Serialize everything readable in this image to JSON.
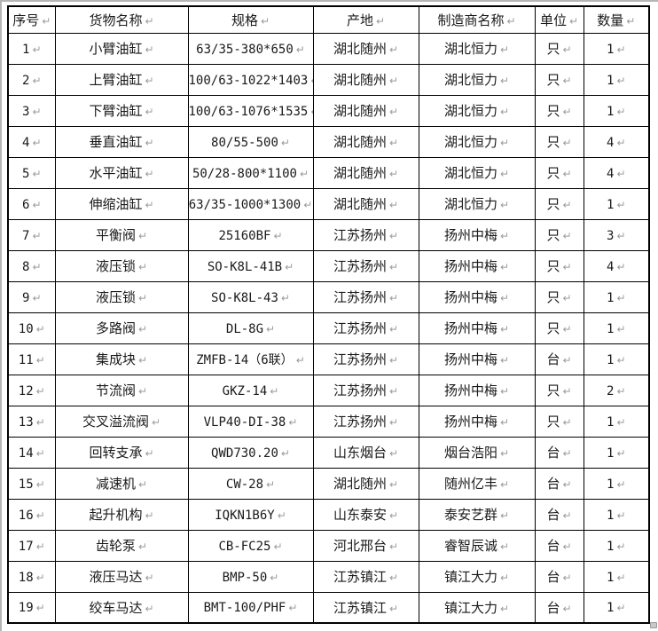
{
  "colors": {
    "grid": "#000000",
    "text": "#1a1a1a",
    "mark": "#9c9c9c",
    "page-edge": "#b5b5b5",
    "bg": "#ffffff"
  },
  "marks": {
    "cell_return": "↵"
  },
  "table": {
    "columns": [
      {
        "id": "no",
        "label": "序号"
      },
      {
        "id": "name",
        "label": "货物名称"
      },
      {
        "id": "spec",
        "label": "规格"
      },
      {
        "id": "origin",
        "label": "产地"
      },
      {
        "id": "maker",
        "label": "制造商名称"
      },
      {
        "id": "unit",
        "label": "单位"
      },
      {
        "id": "qty",
        "label": "数量"
      }
    ],
    "rows": [
      {
        "no": "1",
        "name": "小臂油缸",
        "spec": "63/35-380*650",
        "origin": "湖北随州",
        "maker": "湖北恒力",
        "unit": "只",
        "qty": "1"
      },
      {
        "no": "2",
        "name": "上臂油缸",
        "spec": "100/63-1022*1403",
        "origin": "湖北随州",
        "maker": "湖北恒力",
        "unit": "只",
        "qty": "1"
      },
      {
        "no": "3",
        "name": "下臂油缸",
        "spec": "100/63-1076*1535",
        "origin": "湖北随州",
        "maker": "湖北恒力",
        "unit": "只",
        "qty": "1"
      },
      {
        "no": "4",
        "name": "垂直油缸",
        "spec": "80/55-500",
        "origin": "湖北随州",
        "maker": "湖北恒力",
        "unit": "只",
        "qty": "4"
      },
      {
        "no": "5",
        "name": "水平油缸",
        "spec": "50/28-800*1100",
        "origin": "湖北随州",
        "maker": "湖北恒力",
        "unit": "只",
        "qty": "4"
      },
      {
        "no": "6",
        "name": "伸缩油缸",
        "spec": "63/35-1000*1300",
        "origin": "湖北随州",
        "maker": "湖北恒力",
        "unit": "只",
        "qty": "1"
      },
      {
        "no": "7",
        "name": "平衡阀",
        "spec": "25160BF",
        "origin": "江苏扬州",
        "maker": "扬州中梅",
        "unit": "只",
        "qty": "3"
      },
      {
        "no": "8",
        "name": "液压锁",
        "spec": "SO-K8L-41B",
        "origin": "江苏扬州",
        "maker": "扬州中梅",
        "unit": "只",
        "qty": "4"
      },
      {
        "no": "9",
        "name": "液压锁",
        "spec": "SO-K8L-43",
        "origin": "江苏扬州",
        "maker": "扬州中梅",
        "unit": "只",
        "qty": "1"
      },
      {
        "no": "10",
        "name": "多路阀",
        "spec": "DL-8G",
        "origin": "江苏扬州",
        "maker": "扬州中梅",
        "unit": "只",
        "qty": "1"
      },
      {
        "no": "11",
        "name": "集成块",
        "spec": "ZMFB-14（6联）",
        "origin": "江苏扬州",
        "maker": "扬州中梅",
        "unit": "台",
        "qty": "1"
      },
      {
        "no": "12",
        "name": "节流阀",
        "spec": "GKZ-14",
        "origin": "江苏扬州",
        "maker": "扬州中梅",
        "unit": "只",
        "qty": "2"
      },
      {
        "no": "13",
        "name": "交叉溢流阀",
        "spec": "VLP40-DI-38",
        "origin": "江苏扬州",
        "maker": "扬州中梅",
        "unit": "只",
        "qty": "1"
      },
      {
        "no": "14",
        "name": "回转支承",
        "spec": "QWD730.20",
        "origin": "山东烟台",
        "maker": "烟台浩阳",
        "unit": "台",
        "qty": "1"
      },
      {
        "no": "15",
        "name": "减速机",
        "spec": "CW-28",
        "origin": "湖北随州",
        "maker": "随州亿丰",
        "unit": "台",
        "qty": "1"
      },
      {
        "no": "16",
        "name": "起升机构",
        "spec": "IQKN1B6Y",
        "origin": "山东泰安",
        "maker": "泰安艺群",
        "unit": "台",
        "qty": "1"
      },
      {
        "no": "17",
        "name": "齿轮泵",
        "spec": "CB-FC25",
        "origin": "河北邢台",
        "maker": "睿智辰诚",
        "unit": "台",
        "qty": "1"
      },
      {
        "no": "18",
        "name": "液压马达",
        "spec": "BMP-50",
        "origin": "江苏镇江",
        "maker": "镇江大力",
        "unit": "台",
        "qty": "1"
      },
      {
        "no": "19",
        "name": "绞车马达",
        "spec": "BMT-100/PHF",
        "origin": "江苏镇江",
        "maker": "镇江大力",
        "unit": "台",
        "qty": "1"
      }
    ]
  }
}
